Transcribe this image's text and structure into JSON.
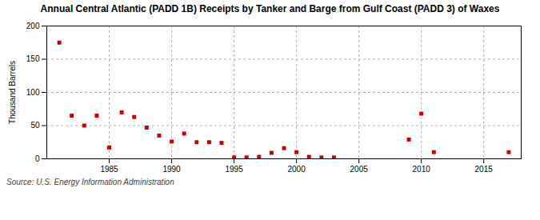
{
  "chart_data": {
    "type": "scatter",
    "title": "Annual Central Atlantic (PADD 1B) Receipts by Tanker and Barge from Gulf Coast (PADD 3) of Waxes",
    "ylabel": "Thousand Barrels",
    "source": "Source: U.S. Energy Information Administration",
    "color": "#cc0000",
    "marker": "square",
    "grid": true,
    "xlim": [
      1980,
      2018
    ],
    "ylim": [
      0,
      200
    ],
    "xticks": [
      1985,
      1990,
      1995,
      2000,
      2005,
      2010,
      2015
    ],
    "yticks": [
      0,
      50,
      100,
      150,
      200
    ],
    "x": [
      1981,
      1982,
      1983,
      1984,
      1985,
      1986,
      1987,
      1988,
      1989,
      1990,
      1991,
      1992,
      1993,
      1994,
      1995,
      1996,
      1997,
      1998,
      1999,
      2000,
      2001,
      2002,
      2003,
      2009,
      2010,
      2011,
      2017
    ],
    "values": [
      175,
      65,
      50,
      65,
      17,
      70,
      63,
      47,
      35,
      26,
      38,
      25,
      25,
      24,
      2,
      2,
      3,
      9,
      16,
      10,
      3,
      2,
      2,
      29,
      68,
      10,
      10
    ]
  }
}
